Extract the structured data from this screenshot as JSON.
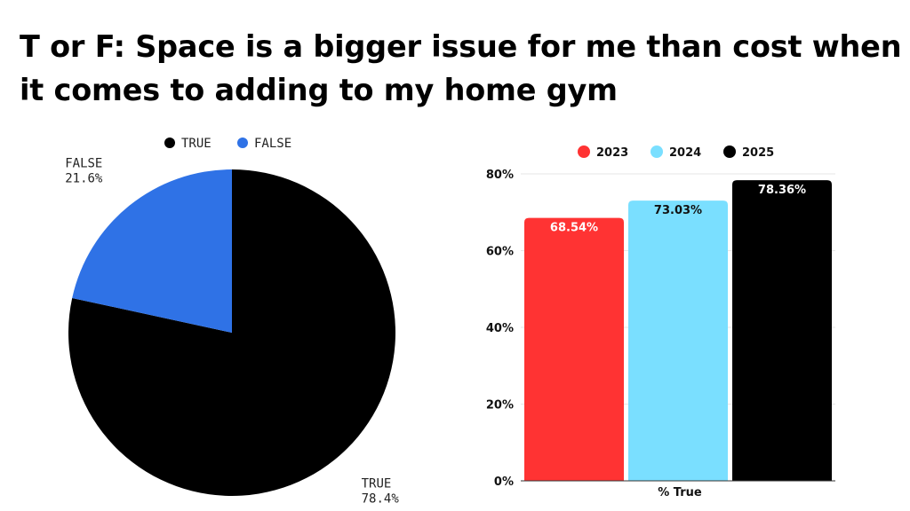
{
  "title": {
    "line1": "T or F: Space is a bigger issue for me than cost when",
    "line2": "it comes to adding to my home gym"
  },
  "chart_data": [
    {
      "type": "pie",
      "legend_position": "top",
      "slices": [
        {
          "label": "TRUE",
          "value": 78.4,
          "value_label": "78.4%",
          "color": "#000000"
        },
        {
          "label": "FALSE",
          "value": 21.6,
          "value_label": "21.6%",
          "color": "#2F72E6"
        }
      ]
    },
    {
      "type": "bar",
      "legend_position": "top",
      "categories": [
        "% True"
      ],
      "series": [
        {
          "name": "2023",
          "values": [
            68.54
          ],
          "value_label": "68.54%",
          "color": "#FF3333"
        },
        {
          "name": "2024",
          "values": [
            73.03
          ],
          "value_label": "73.03%",
          "color": "#7ADFFF"
        },
        {
          "name": "2025",
          "values": [
            78.36
          ],
          "value_label": "78.36%",
          "color": "#000000"
        }
      ],
      "ylim": [
        0,
        80
      ],
      "yticks": [
        0,
        20,
        40,
        60,
        80
      ],
      "ytick_labels": [
        "0%",
        "20%",
        "40%",
        "60%",
        "80%"
      ],
      "grid": true
    }
  ]
}
